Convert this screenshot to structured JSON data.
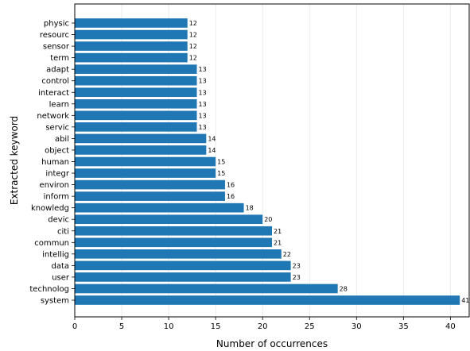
{
  "chart_data": {
    "type": "bar",
    "orientation": "horizontal",
    "title": "",
    "xlabel": "Number of occurrences",
    "ylabel": "Extracted keyword",
    "xlim": [
      0,
      42
    ],
    "xticks": [
      0,
      5,
      10,
      15,
      20,
      25,
      30,
      35,
      40
    ],
    "grid": "vertical",
    "bar_color": "#1f77b4",
    "categories": [
      "physic",
      "resourc",
      "sensor",
      "term",
      "adapt",
      "control",
      "interact",
      "learn",
      "network",
      "servic",
      "abil",
      "object",
      "human",
      "integr",
      "environ",
      "inform",
      "knowledg",
      "devic",
      "citi",
      "commun",
      "intellig",
      "data",
      "user",
      "technolog",
      "system"
    ],
    "values": [
      12,
      12,
      12,
      12,
      13,
      13,
      13,
      13,
      13,
      13,
      14,
      14,
      15,
      15,
      16,
      16,
      18,
      20,
      21,
      21,
      22,
      23,
      23,
      28,
      41
    ]
  }
}
